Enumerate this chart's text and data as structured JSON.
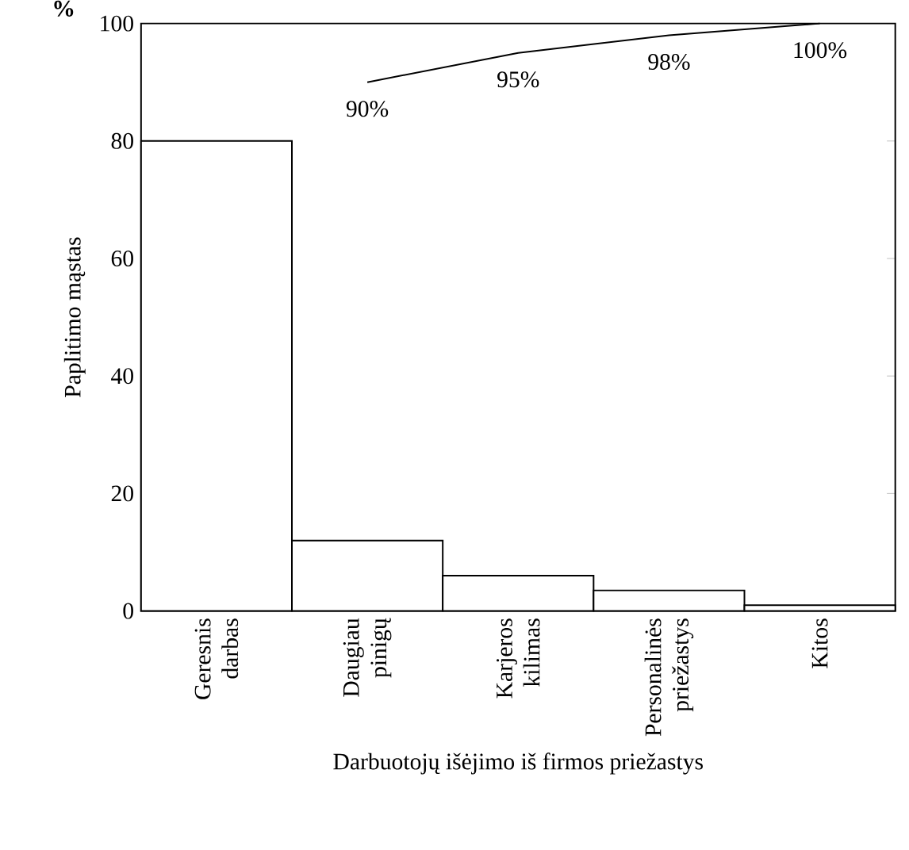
{
  "chart_data": {
    "type": "bar",
    "xlabel": "Darbuotojų išėjimo iš firmos priežastys",
    "ylabel": "Paplitimo mąstas",
    "categories": [
      "Geresnis darbas",
      "Daugiau pinigų",
      "Karjeros kilimas",
      "Personalinės priežastys",
      "Kitos"
    ],
    "series": [
      {
        "color": "#ffffff",
        "values": [
          80,
          12,
          6,
          3.5,
          1
        ]
      },
      {
        "type": "line",
        "color": "#000000",
        "values": [
          null,
          90,
          95,
          98,
          100
        ],
        "value_labels": [
          null,
          "90%",
          "95%",
          "98%",
          "100%"
        ]
      }
    ],
    "ylim": [
      0,
      100
    ],
    "yticks": [
      0,
      20,
      40,
      60,
      80,
      100
    ],
    "grid": false,
    "annotations": [
      "%"
    ]
  }
}
